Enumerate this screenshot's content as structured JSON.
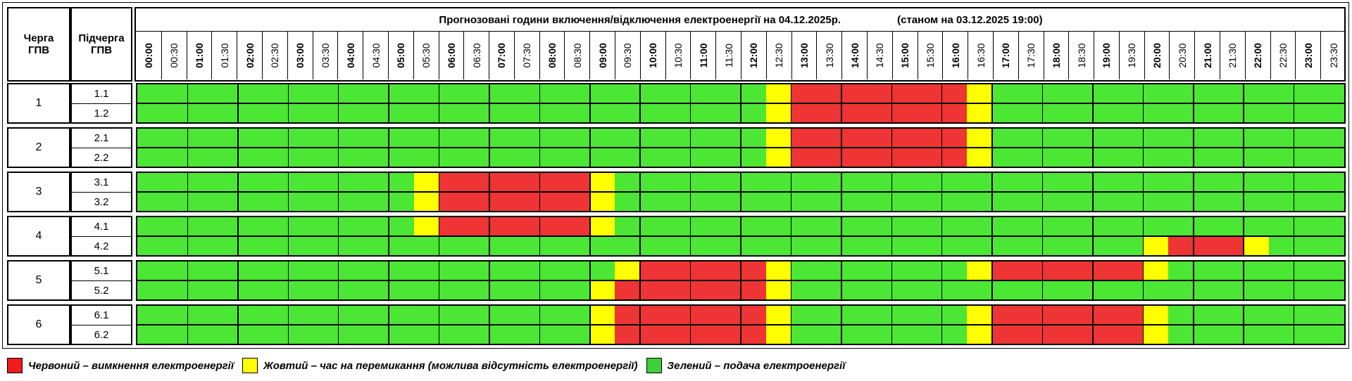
{
  "header": {
    "queue_label_line1": "Черга",
    "queue_label_line2": "ГПВ",
    "subqueue_label_line1": "Підчерга",
    "subqueue_label_line2": "ГПВ",
    "title": "Прогнозовані години включення/відключення електроенергії на 04.12.2025р.",
    "status": "(станом на 03.12.2025 19:00)"
  },
  "times": [
    "00:00",
    "00:30",
    "01:00",
    "01:30",
    "02:00",
    "02:30",
    "03:00",
    "03:30",
    "04:00",
    "04:30",
    "05:00",
    "05:30",
    "06:00",
    "06:30",
    "07:00",
    "07:30",
    "08:00",
    "08:30",
    "09:00",
    "09:30",
    "10:00",
    "10:30",
    "11:00",
    "11:30",
    "12:00",
    "12:30",
    "13:00",
    "13:30",
    "14:00",
    "14:30",
    "15:00",
    "15:30",
    "16:00",
    "16:30",
    "17:00",
    "17:30",
    "18:00",
    "18:30",
    "19:00",
    "19:30",
    "20:00",
    "20:30",
    "21:00",
    "21:30",
    "22:00",
    "22:30",
    "23:00",
    "23:30"
  ],
  "groups": [
    {
      "queue": "1",
      "subqueues": [
        {
          "label": "1.1",
          "segments": [
            {
              "state": "G",
              "from": 0,
              "to": 25
            },
            {
              "state": "Y",
              "from": 25,
              "to": 26
            },
            {
              "state": "R",
              "from": 26,
              "to": 33
            },
            {
              "state": "Y",
              "from": 33,
              "to": 34
            },
            {
              "state": "G",
              "from": 34,
              "to": 48
            }
          ]
        },
        {
          "label": "1.2",
          "segments": [
            {
              "state": "G",
              "from": 0,
              "to": 25
            },
            {
              "state": "Y",
              "from": 25,
              "to": 26
            },
            {
              "state": "R",
              "from": 26,
              "to": 33
            },
            {
              "state": "Y",
              "from": 33,
              "to": 34
            },
            {
              "state": "G",
              "from": 34,
              "to": 48
            }
          ]
        }
      ]
    },
    {
      "queue": "2",
      "subqueues": [
        {
          "label": "2.1",
          "segments": [
            {
              "state": "G",
              "from": 0,
              "to": 25
            },
            {
              "state": "Y",
              "from": 25,
              "to": 26
            },
            {
              "state": "R",
              "from": 26,
              "to": 33
            },
            {
              "state": "Y",
              "from": 33,
              "to": 34
            },
            {
              "state": "G",
              "from": 34,
              "to": 48
            }
          ]
        },
        {
          "label": "2.2",
          "segments": [
            {
              "state": "G",
              "from": 0,
              "to": 25
            },
            {
              "state": "Y",
              "from": 25,
              "to": 26
            },
            {
              "state": "R",
              "from": 26,
              "to": 33
            },
            {
              "state": "Y",
              "from": 33,
              "to": 34
            },
            {
              "state": "G",
              "from": 34,
              "to": 48
            }
          ]
        }
      ]
    },
    {
      "queue": "3",
      "subqueues": [
        {
          "label": "3.1",
          "segments": [
            {
              "state": "G",
              "from": 0,
              "to": 11
            },
            {
              "state": "Y",
              "from": 11,
              "to": 12
            },
            {
              "state": "R",
              "from": 12,
              "to": 18
            },
            {
              "state": "Y",
              "from": 18,
              "to": 19
            },
            {
              "state": "G",
              "from": 19,
              "to": 48
            }
          ]
        },
        {
          "label": "3.2",
          "segments": [
            {
              "state": "G",
              "from": 0,
              "to": 11
            },
            {
              "state": "Y",
              "from": 11,
              "to": 12
            },
            {
              "state": "R",
              "from": 12,
              "to": 18
            },
            {
              "state": "Y",
              "from": 18,
              "to": 19
            },
            {
              "state": "G",
              "from": 19,
              "to": 48
            }
          ]
        }
      ]
    },
    {
      "queue": "4",
      "subqueues": [
        {
          "label": "4.1",
          "segments": [
            {
              "state": "G",
              "from": 0,
              "to": 11
            },
            {
              "state": "Y",
              "from": 11,
              "to": 12
            },
            {
              "state": "R",
              "from": 12,
              "to": 18
            },
            {
              "state": "Y",
              "from": 18,
              "to": 19
            },
            {
              "state": "G",
              "from": 19,
              "to": 48
            }
          ]
        },
        {
          "label": "4.2",
          "segments": [
            {
              "state": "G",
              "from": 0,
              "to": 40
            },
            {
              "state": "Y",
              "from": 40,
              "to": 41
            },
            {
              "state": "R",
              "from": 41,
              "to": 44
            },
            {
              "state": "Y",
              "from": 44,
              "to": 45
            },
            {
              "state": "G",
              "from": 45,
              "to": 48
            }
          ]
        }
      ]
    },
    {
      "queue": "5",
      "subqueues": [
        {
          "label": "5.1",
          "segments": [
            {
              "state": "G",
              "from": 0,
              "to": 19
            },
            {
              "state": "Y",
              "from": 19,
              "to": 20
            },
            {
              "state": "R",
              "from": 20,
              "to": 25
            },
            {
              "state": "Y",
              "from": 25,
              "to": 26
            },
            {
              "state": "G",
              "from": 26,
              "to": 33
            },
            {
              "state": "Y",
              "from": 33,
              "to": 34
            },
            {
              "state": "R",
              "from": 34,
              "to": 40
            },
            {
              "state": "Y",
              "from": 40,
              "to": 41
            },
            {
              "state": "G",
              "from": 41,
              "to": 48
            }
          ]
        },
        {
          "label": "5.2",
          "segments": [
            {
              "state": "G",
              "from": 0,
              "to": 18
            },
            {
              "state": "Y",
              "from": 18,
              "to": 19
            },
            {
              "state": "R",
              "from": 19,
              "to": 25
            },
            {
              "state": "Y",
              "from": 25,
              "to": 26
            },
            {
              "state": "G",
              "from": 26,
              "to": 48
            }
          ]
        }
      ]
    },
    {
      "queue": "6",
      "subqueues": [
        {
          "label": "6.1",
          "segments": [
            {
              "state": "G",
              "from": 0,
              "to": 18
            },
            {
              "state": "Y",
              "from": 18,
              "to": 19
            },
            {
              "state": "R",
              "from": 19,
              "to": 25
            },
            {
              "state": "Y",
              "from": 25,
              "to": 26
            },
            {
              "state": "G",
              "from": 26,
              "to": 33
            },
            {
              "state": "Y",
              "from": 33,
              "to": 34
            },
            {
              "state": "R",
              "from": 34,
              "to": 40
            },
            {
              "state": "Y",
              "from": 40,
              "to": 41
            },
            {
              "state": "G",
              "from": 41,
              "to": 48
            }
          ]
        },
        {
          "label": "6.2",
          "segments": [
            {
              "state": "G",
              "from": 0,
              "to": 18
            },
            {
              "state": "Y",
              "from": 18,
              "to": 19
            },
            {
              "state": "R",
              "from": 19,
              "to": 25
            },
            {
              "state": "Y",
              "from": 25,
              "to": 26
            },
            {
              "state": "G",
              "from": 26,
              "to": 33
            },
            {
              "state": "Y",
              "from": 33,
              "to": 34
            },
            {
              "state": "R",
              "from": 34,
              "to": 40
            },
            {
              "state": "Y",
              "from": 40,
              "to": 41
            },
            {
              "state": "G",
              "from": 41,
              "to": 48
            }
          ]
        }
      ]
    }
  ],
  "colors": {
    "R": "#ee3434",
    "Y": "#ffff00",
    "G": "#4ce634"
  },
  "legend": [
    {
      "key": "R",
      "text": "Червоний – вимкнення електроенергії"
    },
    {
      "key": "Y",
      "text": "Жовтий – час на перемикання (можлива відсутність електроенергії)"
    },
    {
      "key": "G",
      "text": "Зелений – подача електроенергії"
    }
  ]
}
